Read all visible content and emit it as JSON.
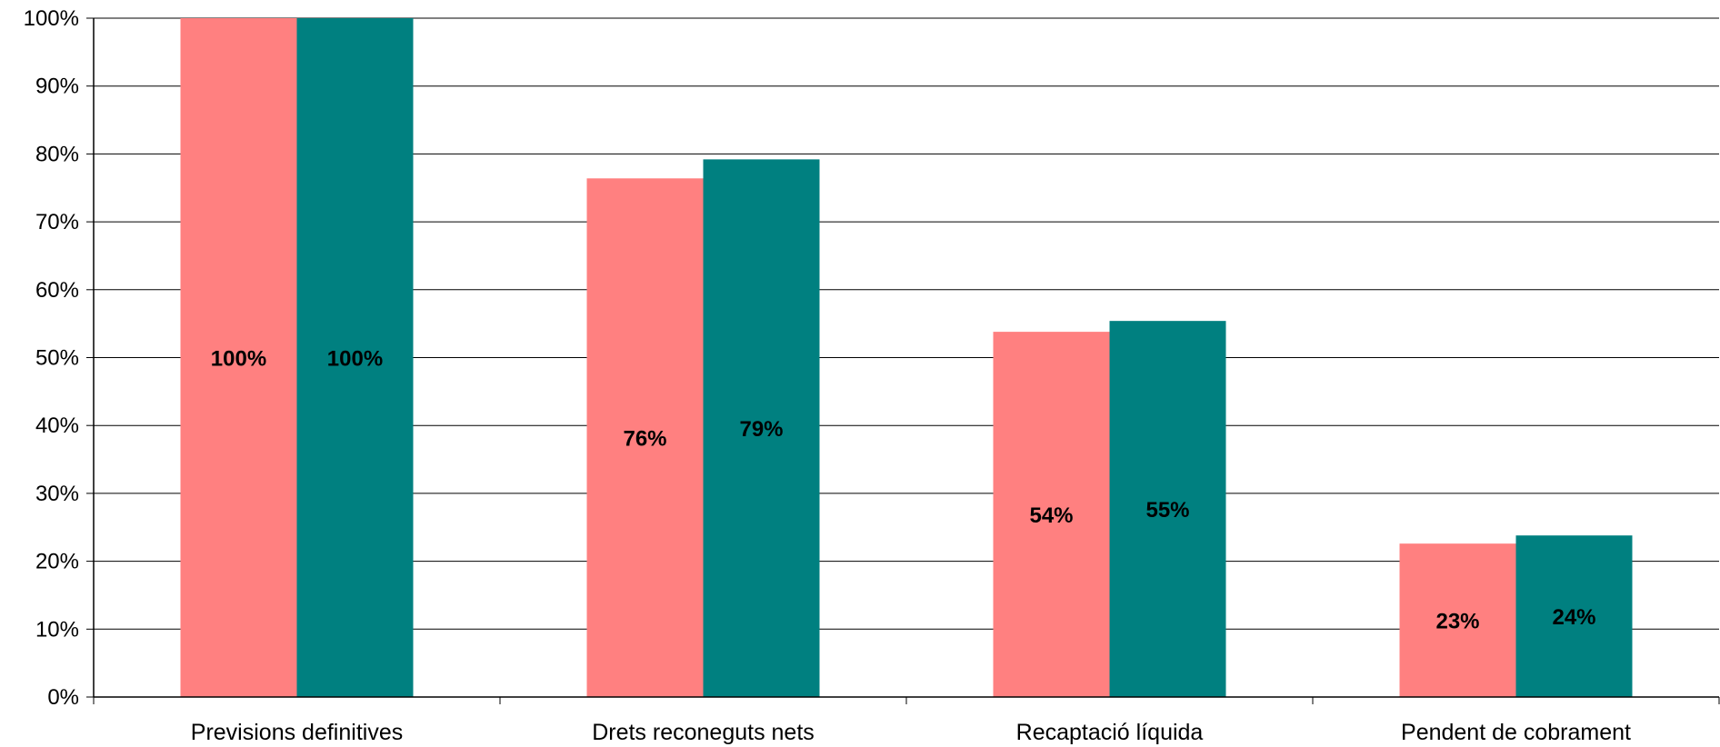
{
  "chart_data": {
    "type": "bar",
    "categories": [
      "Previsions definitives",
      "Drets reconeguts nets",
      "Recaptació líquida",
      "Pendent de cobrament"
    ],
    "series": [
      {
        "values": [
          100,
          76.4,
          53.8,
          22.6
        ],
        "labels": [
          "100%",
          "76%",
          "54%",
          "23%"
        ],
        "color": "#FF8080"
      },
      {
        "values": [
          100,
          79.2,
          55.4,
          23.8
        ],
        "labels": [
          "100%",
          "79%",
          "55%",
          "24%"
        ],
        "color": "#008080"
      }
    ],
    "y_ticks": [
      "0%",
      "10%",
      "20%",
      "30%",
      "40%",
      "50%",
      "60%",
      "70%",
      "80%",
      "90%",
      "100%"
    ],
    "ylim": [
      0,
      100
    ],
    "grid": true,
    "legend": "none",
    "title": "",
    "xlabel": "",
    "ylabel": ""
  }
}
